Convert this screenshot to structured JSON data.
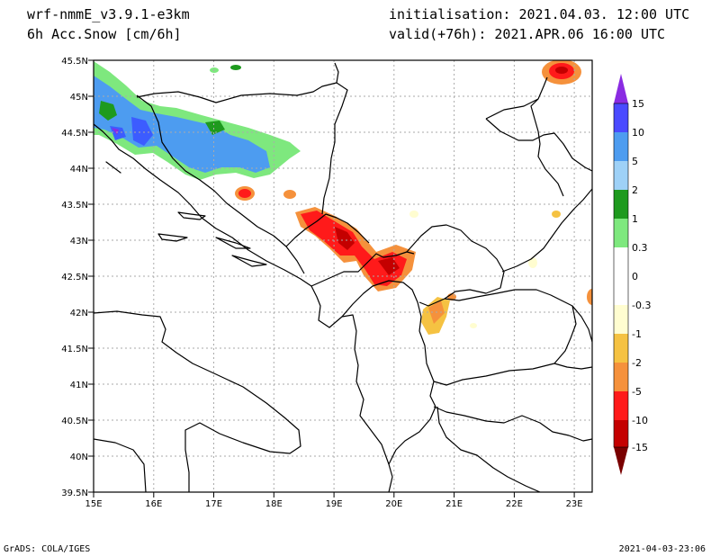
{
  "header": {
    "model": "wrf-nmmE_v3.9.1-e3km",
    "variable": "6h Acc.Snow [cm/6h]",
    "initialisation": "initialisation: 2021.04.03.  12:00 UTC",
    "valid": "valid(+76h): 2021.APR.06 16:00 UTC"
  },
  "footer": {
    "left": "GrADS: COLA/IGES",
    "right": "2021-04-03-23:06"
  },
  "axes": {
    "lon_labels": [
      "15E",
      "16E",
      "17E",
      "18E",
      "19E",
      "20E",
      "21E",
      "22E",
      "23E"
    ],
    "lat_labels": [
      "45.5N",
      "45N",
      "44.5N",
      "44N",
      "43.5N",
      "43N",
      "42.5N",
      "42N",
      "41.5N",
      "41N",
      "40.5N",
      "40N",
      "39.5N"
    ],
    "lon_range": [
      15,
      23.3
    ],
    "lat_range": [
      39.5,
      45.5
    ]
  },
  "colorbar": {
    "labels": [
      "15",
      "10",
      "5",
      "2",
      "1",
      "0.3",
      "0",
      "-0.3",
      "-1",
      "-2",
      "-5",
      "-10",
      "-15"
    ],
    "colors": [
      "#8a2be2",
      "#4a4aff",
      "#4d9cf0",
      "#9ed1f7",
      "#1e9a1e",
      "#7ee87e",
      "#ffffff",
      "#fffdd0",
      "#f5c242",
      "#f5913c",
      "#ff1a1a",
      "#d40000",
      "#990000",
      "#7a0000"
    ]
  },
  "map": {
    "colors": {
      "blue": "#4d9cf0",
      "deep_blue": "#3c5cff",
      "green": "#1e9a1e",
      "light_green": "#7ee87e",
      "red": "#ff1a1a",
      "dark_red": "#c40000",
      "orange": "#f5913c",
      "yellow": "#f5c242",
      "cream": "#fffdd0"
    }
  }
}
